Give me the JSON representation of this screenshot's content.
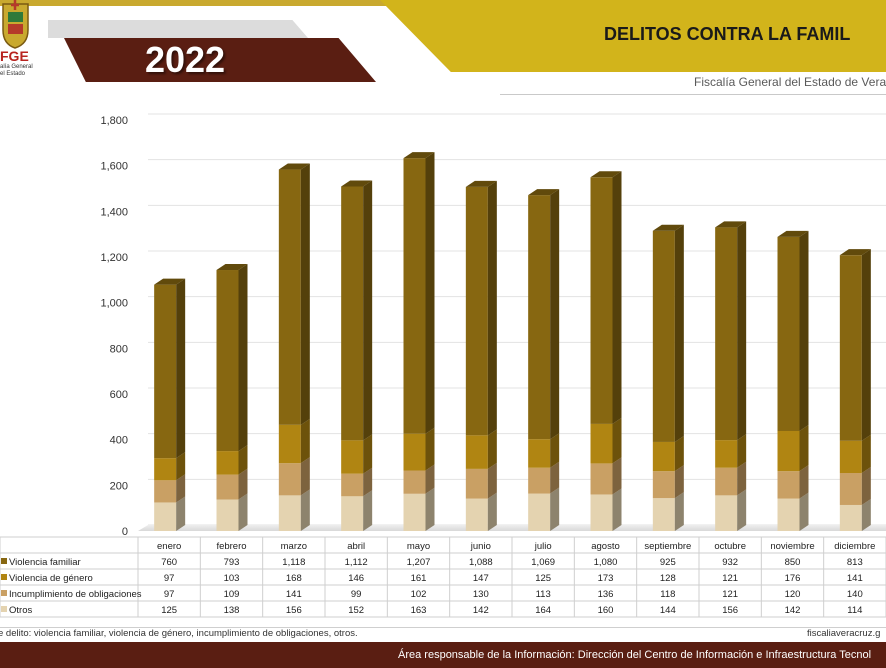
{
  "header": {
    "year": "2022",
    "title": "DELITOS CONTRA LA FAMIL",
    "subtitle": "Fiscalía General del Estado de Vera",
    "logo_text": "FGE",
    "logo_caption_1": "alía General",
    "logo_caption_2": "el Estado"
  },
  "footer": {
    "note": "e delito: violencia familiar, violencia de género, incumplimiento de obligaciones, otros.",
    "website": "fiscaliaveracruz.g",
    "responsible": "Área responsable de la Información: Dirección del Centro de Información e Infraestructura Tecnol"
  },
  "colors": {
    "brand_gold": "#d2b41b",
    "brand_maroon": "#5a1e12",
    "otros": "#e4d3b0",
    "incumplimiento": "#c9a064",
    "genero": "#b08512",
    "familiar": "#876711"
  },
  "chart_data": {
    "type": "bar",
    "stacked": true,
    "categories": [
      "enero",
      "febrero",
      "marzo",
      "abril",
      "mayo",
      "junio",
      "julio",
      "agosto",
      "septiembre",
      "octubre",
      "noviembre",
      "diciembre"
    ],
    "series": [
      {
        "name": "Violencia familiar",
        "values": [
          760,
          793,
          1118,
          1112,
          1207,
          1088,
          1069,
          1080,
          925,
          932,
          850,
          813
        ],
        "labels": [
          "760",
          "793",
          "1,118",
          "1,112",
          "1,207",
          "1,088",
          "1,069",
          "1,080",
          "925",
          "932",
          "850",
          "813"
        ]
      },
      {
        "name": "Violencia de género",
        "values": [
          97,
          103,
          168,
          146,
          161,
          147,
          125,
          173,
          128,
          121,
          176,
          141
        ],
        "labels": [
          "97",
          "103",
          "168",
          "146",
          "161",
          "147",
          "125",
          "173",
          "128",
          "121",
          "176",
          "141"
        ]
      },
      {
        "name": "Incumplimiento de obligaciones",
        "values": [
          97,
          109,
          141,
          99,
          102,
          130,
          113,
          136,
          118,
          121,
          120,
          140
        ],
        "labels": [
          "97",
          "109",
          "141",
          "99",
          "102",
          "130",
          "113",
          "136",
          "118",
          "121",
          "120",
          "140"
        ]
      },
      {
        "name": "Otros",
        "values": [
          125,
          138,
          156,
          152,
          163,
          142,
          164,
          160,
          144,
          156,
          142,
          114
        ],
        "labels": [
          "125",
          "138",
          "156",
          "152",
          "163",
          "142",
          "164",
          "160",
          "144",
          "156",
          "142",
          "114"
        ]
      }
    ],
    "ylim": [
      0,
      1800
    ],
    "yticks": [
      "0",
      "200",
      "400",
      "600",
      "800",
      "1,000",
      "1,200",
      "1,400",
      "1,600",
      "1,800"
    ],
    "grid": true,
    "legend": "data-table"
  }
}
